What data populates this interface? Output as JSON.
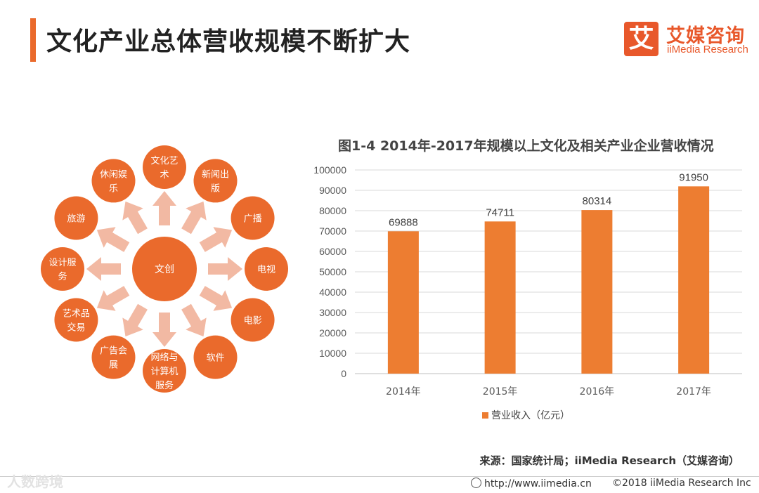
{
  "page": {
    "title": "文化产业总体营收规模不断扩大"
  },
  "logo": {
    "mark": "艾",
    "name_cn": "艾媒咨询",
    "name_en": "iiMedia Research"
  },
  "diagram": {
    "center": "文创",
    "nodes": [
      [
        "文化艺",
        "术"
      ],
      [
        "新闻出",
        "版"
      ],
      [
        "广播"
      ],
      [
        "电视"
      ],
      [
        "电影"
      ],
      [
        "软件"
      ],
      [
        "网络与",
        "计算机",
        "服务"
      ],
      [
        "广告会",
        "展"
      ],
      [
        "艺术品",
        "交易"
      ],
      [
        "设计服",
        "务"
      ],
      [
        "旅游"
      ],
      [
        "休闲娱",
        "乐"
      ]
    ],
    "colors": {
      "node": "#ea6a2c",
      "arrow": "#f2b9a3"
    }
  },
  "chart_data": {
    "type": "bar",
    "title": "图1-4 2014年-2017年规模以上文化及相关产业企业营收情况",
    "categories": [
      "2014年",
      "2015年",
      "2016年",
      "2017年"
    ],
    "series": [
      {
        "name": "营业收入（亿元）",
        "values": [
          69888,
          74711,
          80314,
          91950
        ],
        "color": "#ed7d31"
      }
    ],
    "ylim": [
      0,
      100000
    ],
    "yticks": [
      0,
      10000,
      20000,
      30000,
      40000,
      50000,
      60000,
      70000,
      80000,
      90000,
      100000
    ],
    "grid": true,
    "legend": "bottom"
  },
  "source": "来源：国家统计局；iiMedia Research（艾媒咨询）",
  "footer": {
    "watermark": "人数跨境",
    "url": "http://www.iimedia.cn",
    "copyright": "©2018  iiMedia Research  Inc"
  }
}
